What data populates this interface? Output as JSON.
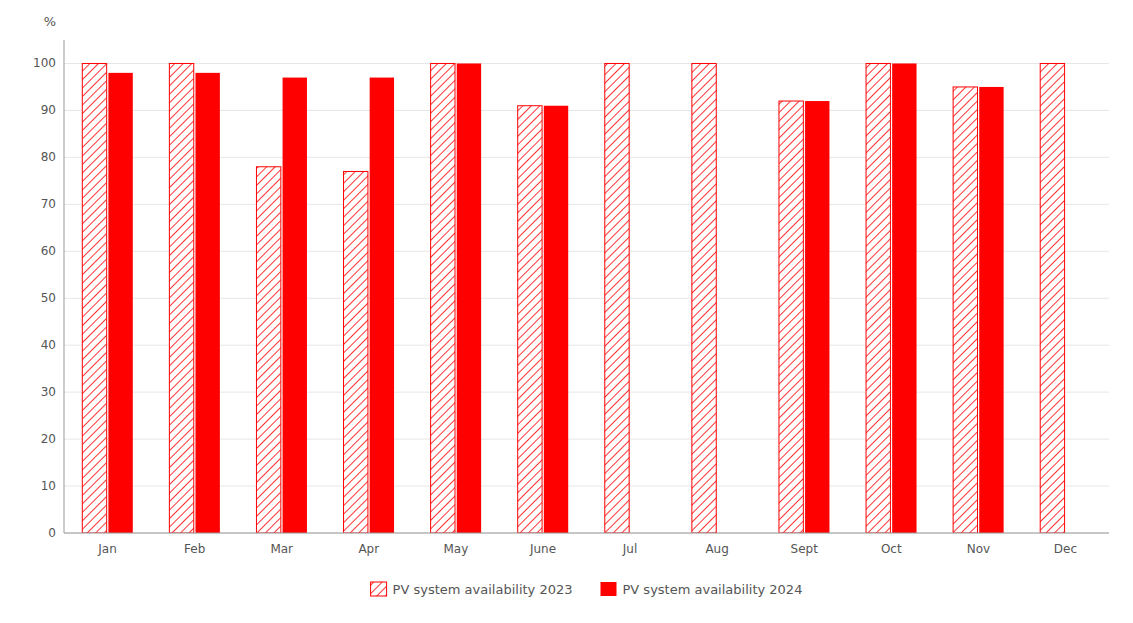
{
  "chart_data": {
    "type": "bar",
    "categories": [
      "Jan",
      "Feb",
      "Mar",
      "Apr",
      "May",
      "June",
      "Jul",
      "Aug",
      "Sept",
      "Oct",
      "Nov",
      "Dec"
    ],
    "series": [
      {
        "name": "PV system availability 2023",
        "color": "#ff0000",
        "values": [
          100,
          100,
          78,
          77,
          100,
          91,
          100,
          100,
          92,
          100,
          95,
          100
        ]
      },
      {
        "name": "PV system availability 2024",
        "color": "#ff0000",
        "values": [
          98,
          98,
          97,
          97,
          100,
          91,
          null,
          null,
          92,
          100,
          95,
          null
        ]
      }
    ],
    "y_label": "%",
    "ylim": [
      0,
      105
    ],
    "yticks": [
      0,
      10,
      20,
      30,
      40,
      50,
      60,
      70,
      80,
      90,
      100
    ],
    "grid": true,
    "legend": "bottom"
  }
}
